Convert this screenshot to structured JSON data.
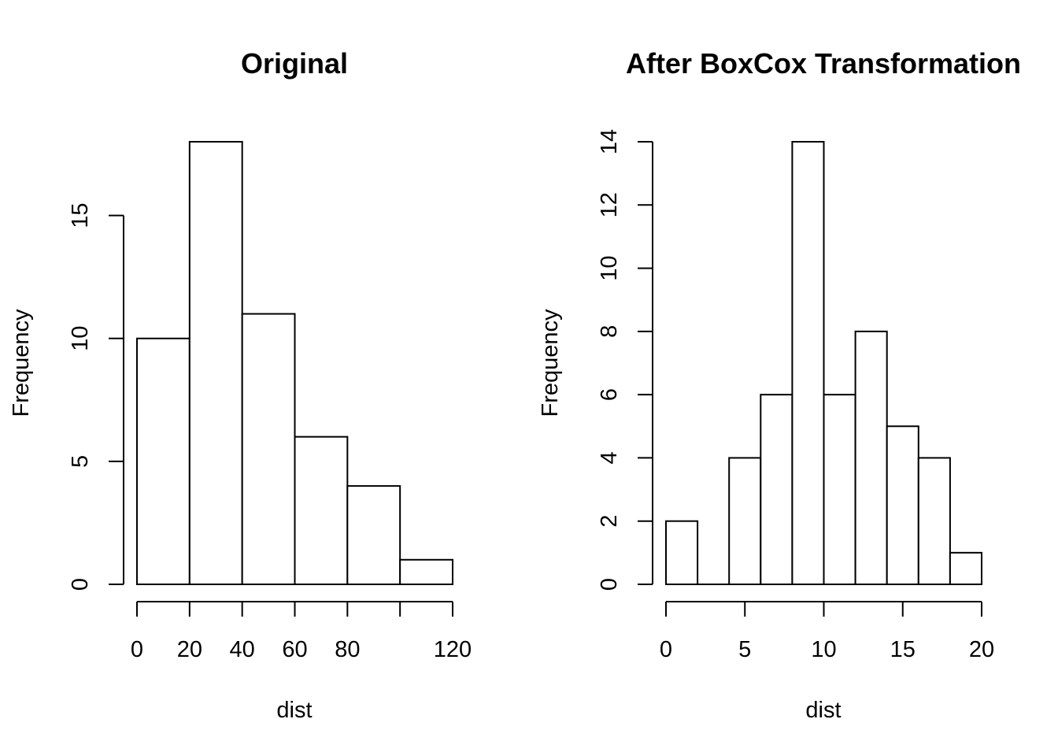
{
  "chart_data": [
    {
      "type": "bar",
      "subtype": "histogram",
      "title": "Original",
      "xlabel": "dist",
      "ylabel": "Frequency",
      "bins": [
        [
          0,
          20
        ],
        [
          20,
          40
        ],
        [
          40,
          60
        ],
        [
          60,
          80
        ],
        [
          80,
          100
        ],
        [
          100,
          120
        ]
      ],
      "values": [
        10,
        18,
        11,
        6,
        4,
        1
      ],
      "xlim": [
        0,
        120
      ],
      "ylim": [
        0,
        18
      ],
      "xticks": [
        0,
        20,
        40,
        60,
        80,
        100,
        120
      ],
      "xtick_labels": [
        "0",
        "20",
        "40",
        "60",
        "80",
        "",
        "120"
      ],
      "yticks": [
        0,
        5,
        10,
        15
      ],
      "ytick_labels": [
        "0",
        "5",
        "10",
        "15"
      ],
      "grid": false,
      "bar_fill": "#ffffff",
      "bar_stroke": "#000000"
    },
    {
      "type": "bar",
      "subtype": "histogram",
      "title": "After BoxCox Transformation",
      "xlabel": "dist",
      "ylabel": "Frequency",
      "bins": [
        [
          0,
          2
        ],
        [
          2,
          4
        ],
        [
          4,
          6
        ],
        [
          6,
          8
        ],
        [
          8,
          10
        ],
        [
          10,
          12
        ],
        [
          12,
          14
        ],
        [
          14,
          16
        ],
        [
          16,
          18
        ],
        [
          18,
          20
        ]
      ],
      "values": [
        2,
        0,
        4,
        6,
        14,
        6,
        8,
        5,
        4,
        1
      ],
      "xlim": [
        0,
        20
      ],
      "ylim": [
        0,
        14
      ],
      "xticks": [
        0,
        5,
        10,
        15,
        20
      ],
      "xtick_labels": [
        "0",
        "5",
        "10",
        "15",
        "20"
      ],
      "yticks": [
        0,
        2,
        4,
        6,
        8,
        10,
        12,
        14
      ],
      "ytick_labels": [
        "0",
        "2",
        "4",
        "6",
        "8",
        "10",
        "12",
        "14"
      ],
      "grid": false,
      "bar_fill": "#ffffff",
      "bar_stroke": "#000000"
    }
  ]
}
